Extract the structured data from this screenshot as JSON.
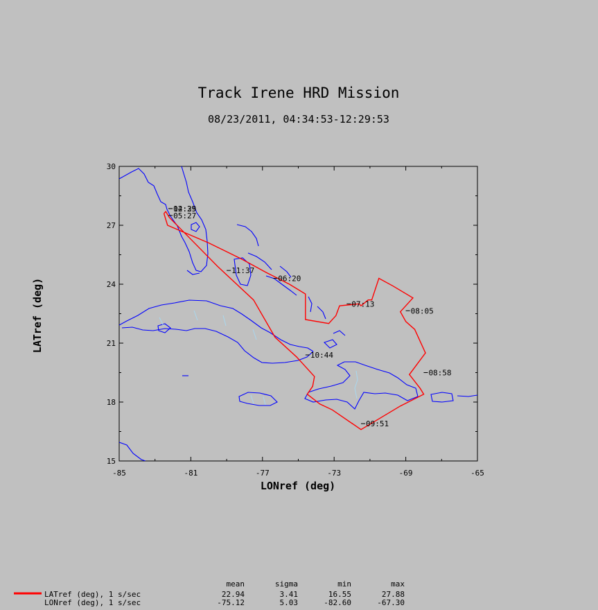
{
  "chart_data": {
    "type": "line",
    "title": "Track Irene HRD Mission",
    "subtitle": "08/23/2011, 04:34:53-12:29:53",
    "xlabel": "LONref (deg)",
    "ylabel": "LATref (deg)",
    "xlim": [
      -85,
      -65
    ],
    "ylim": [
      15,
      30
    ],
    "xticks": [
      -85,
      -81,
      -77,
      -73,
      -69,
      -65
    ],
    "yticks": [
      15,
      18,
      21,
      24,
      27,
      30
    ],
    "grid": false,
    "colors": {
      "background": "#c0c0c0",
      "track": "#ff0000",
      "coast": "#0000ff",
      "borders": "#a8d8f0"
    },
    "series": [
      {
        "name": "track",
        "x": [
          -82.5,
          -82.3,
          -80.0,
          -78.2,
          -76.8,
          -75.5,
          -74.6,
          -74.6,
          -73.3,
          -72.9,
          -72.7,
          -71.6,
          -71.5,
          -71.1,
          -70.9,
          -70.5,
          -69.7,
          -68.6,
          -69.3,
          -69.0,
          -68.5,
          -67.9,
          -68.8,
          -68.2,
          -68.0,
          -69.3,
          -71.5,
          -73.1,
          -73.8,
          -74.5,
          -74.2,
          -74.1,
          -74.8,
          -75.1,
          -76.3,
          -77.5,
          -79.5,
          -82.2,
          -82.4,
          -82.5
        ],
        "y": [
          27.6,
          27.0,
          26.1,
          25.3,
          24.6,
          24.0,
          23.5,
          22.2,
          22.0,
          22.4,
          22.9,
          23.0,
          22.9,
          23.2,
          23.2,
          24.3,
          23.9,
          23.3,
          22.6,
          22.1,
          21.7,
          20.5,
          19.4,
          18.7,
          18.4,
          17.8,
          16.6,
          17.6,
          17.9,
          18.4,
          18.8,
          19.3,
          20.0,
          20.3,
          21.3,
          23.2,
          24.9,
          27.4,
          27.7,
          27.6
        ]
      }
    ],
    "annotations": [
      {
        "text": "05:27",
        "lon": -82.25,
        "lat": 27.5
      },
      {
        "text": "06:20",
        "lon": -76.4,
        "lat": 24.3
      },
      {
        "text": "07:13",
        "lon": -72.3,
        "lat": 23.0
      },
      {
        "text": "08:05",
        "lon": -69.0,
        "lat": 22.65
      },
      {
        "text": "08:58",
        "lon": -68.0,
        "lat": 19.5
      },
      {
        "text": "09:51",
        "lon": -71.5,
        "lat": 16.9
      },
      {
        "text": "10:44",
        "lon": -74.6,
        "lat": 20.4
      },
      {
        "text": "11:37",
        "lon": -79.0,
        "lat": 24.7
      },
      {
        "text": "12:29",
        "lon": -82.25,
        "lat": 27.85
      },
      {
        "text": "04:35",
        "lon": -82.25,
        "lat": 27.85
      }
    ],
    "legend": {
      "position": "bottom-left",
      "columns": [
        "mean",
        "sigma",
        "min",
        "max"
      ],
      "rows": [
        {
          "label": "LATref (deg), 1 s/sec",
          "mean": "22.94",
          "sigma": "3.41",
          "min": "16.55",
          "max": "27.88"
        },
        {
          "label": "LONref (deg), 1 s/sec",
          "mean": "-75.12",
          "sigma": "5.03",
          "min": "-82.60",
          "max": "-67.30"
        }
      ]
    }
  }
}
